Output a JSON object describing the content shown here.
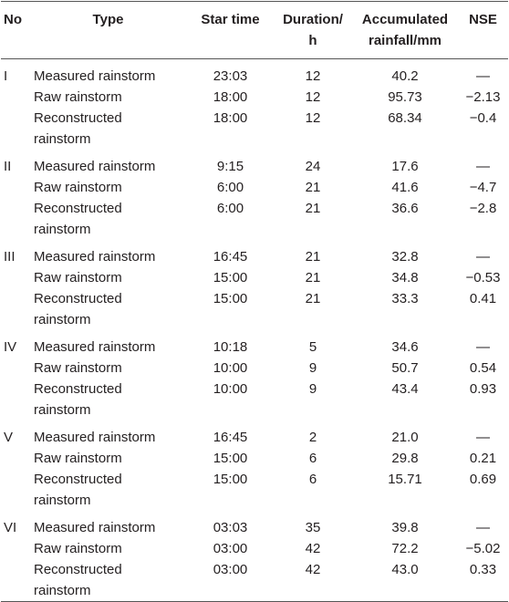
{
  "table": {
    "header": [
      "No",
      "Type",
      "Star time",
      "Duration/ h",
      "Accumulated rainfall/mm",
      "NSE"
    ],
    "groups": [
      {
        "no": "I",
        "rows": [
          [
            "Measured rainstorm",
            "23:03",
            "12",
            "40.2",
            "—"
          ],
          [
            "Raw rainstorm",
            "18:00",
            "12",
            "95.73",
            "−2.13"
          ],
          [
            "Reconstructed rainstorm",
            "18:00",
            "12",
            "68.34",
            "−0.4"
          ]
        ]
      },
      {
        "no": "II",
        "rows": [
          [
            "Measured rainstorm",
            "9:15",
            "24",
            "17.6",
            "—"
          ],
          [
            "Raw rainstorm",
            "6:00",
            "21",
            "41.6",
            "−4.7"
          ],
          [
            "Reconstructed rainstorm",
            "6:00",
            "21",
            "36.6",
            "−2.8"
          ]
        ]
      },
      {
        "no": "III",
        "rows": [
          [
            "Measured rainstorm",
            "16:45",
            "21",
            "32.8",
            "—"
          ],
          [
            "Raw rainstorm",
            "15:00",
            "21",
            "34.8",
            "−0.53"
          ],
          [
            "Reconstructed rainstorm",
            "15:00",
            "21",
            "33.3",
            "0.41"
          ]
        ]
      },
      {
        "no": "IV",
        "rows": [
          [
            "Measured rainstorm",
            "10:18",
            "5",
            "34.6",
            "—"
          ],
          [
            "Raw rainstorm",
            "10:00",
            "9",
            "50.7",
            "0.54"
          ],
          [
            "Reconstructed rainstorm",
            "10:00",
            "9",
            "43.4",
            "0.93"
          ]
        ]
      },
      {
        "no": "V",
        "rows": [
          [
            "Measured rainstorm",
            "16:45",
            "2",
            "21.0",
            "—"
          ],
          [
            "Raw rainstorm",
            "15:00",
            "6",
            "29.8",
            "0.21"
          ],
          [
            "Reconstructed rainstorm",
            "15:00",
            "6",
            "15.71",
            "0.69"
          ]
        ]
      },
      {
        "no": "VI",
        "rows": [
          [
            "Measured rainstorm",
            "03:03",
            "35",
            "39.8",
            "—"
          ],
          [
            "Raw rainstorm",
            "03:00",
            "42",
            "72.2",
            "−5.02"
          ],
          [
            "Reconstructed rainstorm",
            "03:00",
            "42",
            "43.0",
            "0.33"
          ]
        ]
      }
    ]
  }
}
